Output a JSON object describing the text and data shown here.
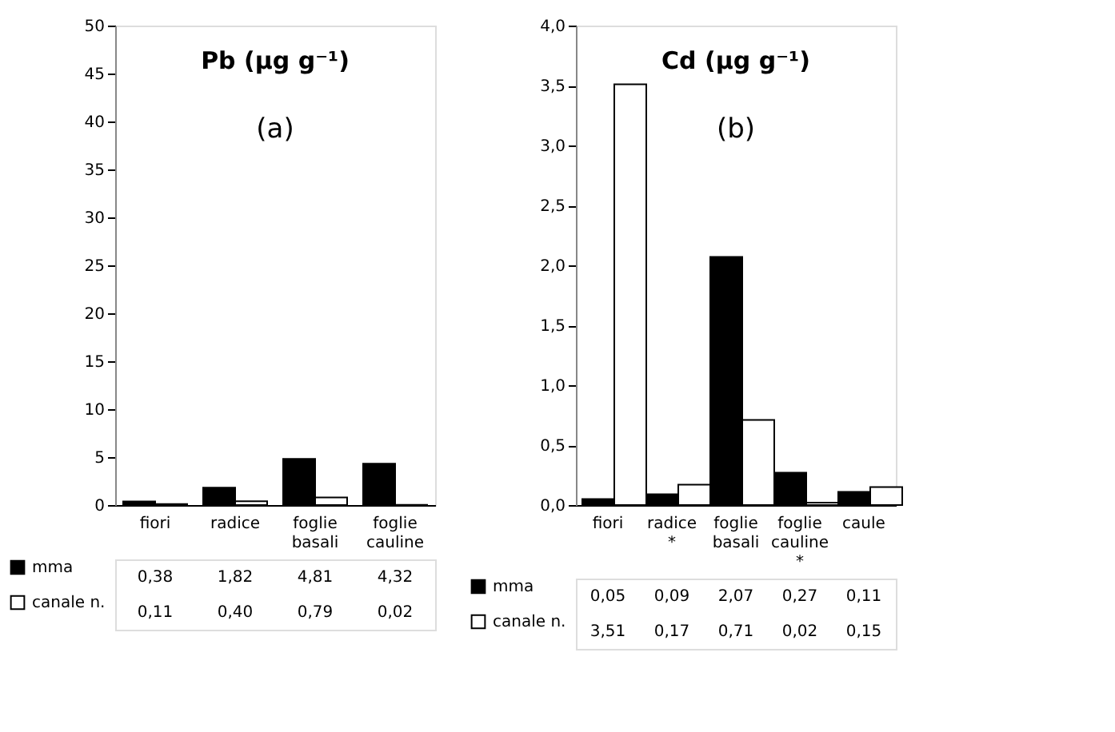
{
  "chart_data": [
    {
      "type": "bar",
      "title": "Pb (µg g⁻¹)",
      "annotations": [
        "(a)"
      ],
      "categories": [
        "fiori",
        "radice",
        "foglie basali",
        "foglie cauline"
      ],
      "series": [
        {
          "name": "mma",
          "color": "#000000",
          "values": [
            0.38,
            1.82,
            4.81,
            4.32
          ],
          "value_labels": [
            "0,38",
            "1,82",
            "4,81",
            "4,32"
          ]
        },
        {
          "name": "canale n.",
          "color": "#ffffff",
          "values": [
            0.11,
            0.4,
            0.79,
            0.02
          ],
          "value_labels": [
            "0,11",
            "0,40",
            "0,79",
            "0,02"
          ]
        }
      ],
      "ylim": [
        0,
        50
      ],
      "yticks": [
        0,
        5,
        10,
        15,
        20,
        25,
        30,
        35,
        40,
        45,
        50
      ],
      "legend": "bottom",
      "grid": false
    },
    {
      "type": "bar",
      "title": "Cd (µg g⁻¹)",
      "annotations": [
        "(b)"
      ],
      "categories": [
        "fiori",
        "radice *",
        "foglie basali",
        "foglie cauline *",
        "caule"
      ],
      "series": [
        {
          "name": "mma",
          "color": "#000000",
          "values": [
            0.05,
            0.09,
            2.07,
            0.27,
            0.11
          ],
          "value_labels": [
            "0,05",
            "0,09",
            "2,07",
            "0,27",
            "0,11"
          ]
        },
        {
          "name": "canale n.",
          "color": "#ffffff",
          "values": [
            3.51,
            0.17,
            0.71,
            0.02,
            0.15
          ],
          "value_labels": [
            "3,51",
            "0,17",
            "0,71",
            "0,02",
            "0,15"
          ]
        }
      ],
      "ylim": [
        0,
        4
      ],
      "yticks": [
        {
          "value": 0,
          "label": "0,0"
        },
        {
          "value": 0.5,
          "label": "0,5"
        },
        {
          "value": 1,
          "label": "1,0"
        },
        {
          "value": 1.5,
          "label": "1,5"
        },
        {
          "value": 2,
          "label": "2,0"
        },
        {
          "value": 2.5,
          "label": "2,5"
        },
        {
          "value": 3,
          "label": "3,0"
        },
        {
          "value": 3.5,
          "label": "3,5"
        },
        {
          "value": 4,
          "label": "4,0"
        }
      ],
      "legend": "bottom",
      "grid": false
    }
  ]
}
